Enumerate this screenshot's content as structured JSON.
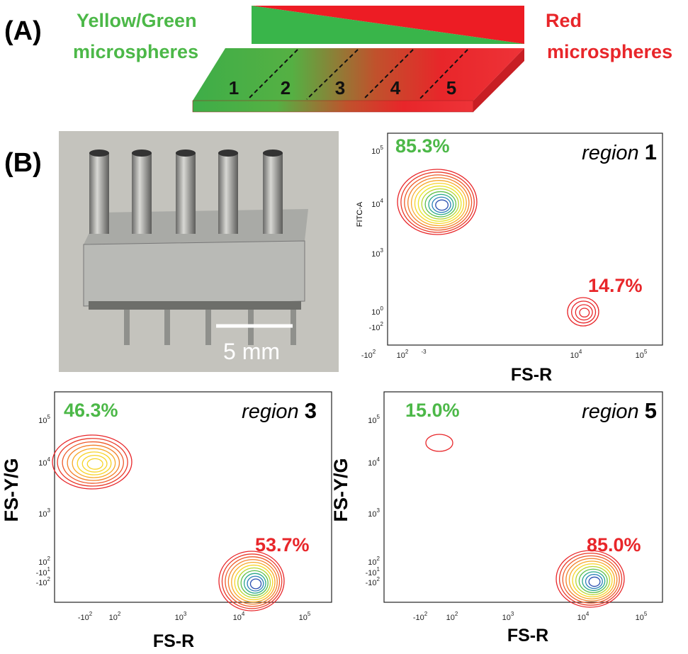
{
  "panel_a": {
    "label": "(A)",
    "left_label": [
      "Yellow/Green",
      "microspheres"
    ],
    "right_label": [
      "Red",
      "microspheres"
    ],
    "regions": [
      "1",
      "2",
      "3",
      "4",
      "5"
    ]
  },
  "panel_b": {
    "label": "(B)",
    "scale_bar": "5 mm",
    "plots": [
      {
        "region_word": "region",
        "region_number": "1",
        "green_percent": "85.3%",
        "red_percent": "14.7%",
        "y_label": "FITC-A",
        "x_label": "FS-R",
        "y_ticks": [
          {
            "base": "10",
            "exp": "5"
          },
          {
            "base": "10",
            "exp": "4"
          },
          {
            "base": "10",
            "exp": "3"
          },
          {
            "base": "10",
            "exp": "0"
          },
          {
            "base": "-10",
            "exp": "2"
          }
        ],
        "x_ticks": [
          {
            "base": "-10",
            "exp": "2"
          },
          {
            "base": "10",
            "exp": "2"
          },
          {
            "base": "",
            "exp": "-3"
          },
          {
            "base": "10",
            "exp": "4"
          },
          {
            "base": "10",
            "exp": "5"
          }
        ]
      },
      {
        "region_word": "region",
        "region_number": "3",
        "green_percent": "46.3%",
        "red_percent": "53.7%",
        "y_label": "FS-Y/G",
        "x_label": "FS-R",
        "y_ticks": [
          {
            "base": "10",
            "exp": "5"
          },
          {
            "base": "10",
            "exp": "4"
          },
          {
            "base": "10",
            "exp": "3"
          },
          {
            "base": "10",
            "exp": "2"
          },
          {
            "base": "-10",
            "exp": "1"
          },
          {
            "base": "-10",
            "exp": "2"
          }
        ],
        "x_ticks": [
          {
            "base": "-10",
            "exp": "2"
          },
          {
            "base": "10",
            "exp": "2"
          },
          {
            "base": "10",
            "exp": "3"
          },
          {
            "base": "10",
            "exp": "4"
          },
          {
            "base": "10",
            "exp": "5"
          }
        ]
      },
      {
        "region_word": "region",
        "region_number": "5",
        "green_percent": "15.0%",
        "red_percent": "85.0%",
        "y_label": "FS-Y/G",
        "x_label": "FS-R",
        "y_ticks": [
          {
            "base": "10",
            "exp": "5"
          },
          {
            "base": "10",
            "exp": "4"
          },
          {
            "base": "10",
            "exp": "3"
          },
          {
            "base": "10",
            "exp": "2"
          },
          {
            "base": "-10",
            "exp": "1"
          },
          {
            "base": "-10",
            "exp": "2"
          }
        ],
        "x_ticks": [
          {
            "base": "-10",
            "exp": "2"
          },
          {
            "base": "10",
            "exp": "2"
          },
          {
            "base": "10",
            "exp": "3"
          },
          {
            "base": "10",
            "exp": "4"
          },
          {
            "base": "10",
            "exp": "5"
          }
        ]
      }
    ]
  }
}
